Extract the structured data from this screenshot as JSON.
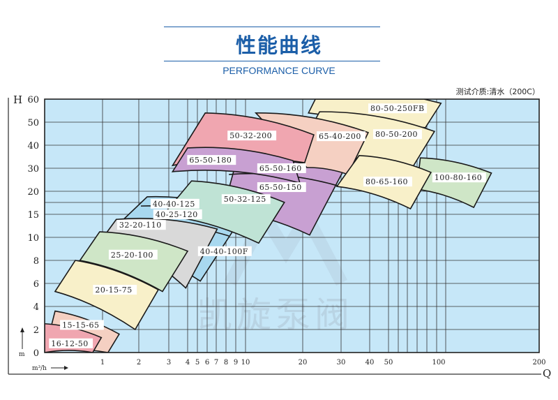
{
  "header": {
    "title": "性能曲线",
    "subtitle": "PERFORMANCE CURVE",
    "test_medium": "测试介质:清水（200C）"
  },
  "watermark": "凯旋泵阀",
  "colors": {
    "plot_bg": "#c6e7f8",
    "grid": "#333333",
    "title_blue": "#1b5ea8",
    "pink": "#f0a6b0",
    "peach": "#f5d0c2",
    "yellow": "#f8f0c9",
    "green": "#cfe6c7",
    "purple": "#c8a0d2",
    "teal": "#bfe3d5",
    "blue": "#a8d8ef",
    "grey": "#d9d9d9"
  },
  "chart_data": {
    "type": "area",
    "xlabel": "Q",
    "ylabel": "H",
    "x_unit": "m³/h",
    "y_unit": "m",
    "x_scale": "custom non-linear (log-like)",
    "y_scale": "custom non-linear",
    "xlim": [
      0,
      200
    ],
    "ylim": [
      0,
      60
    ],
    "grid": true,
    "x_ticks": [
      1,
      2,
      3,
      4,
      5,
      6,
      7,
      8,
      9,
      10,
      20,
      30,
      40,
      50,
      100,
      200
    ],
    "x_gridlines": [
      1,
      2,
      3,
      4,
      5,
      6,
      7,
      8,
      9,
      10,
      20,
      30,
      40,
      50,
      60,
      70,
      80,
      90,
      100,
      110
    ],
    "y_ticks": [
      0,
      2,
      4,
      6,
      8,
      10,
      15,
      20,
      30,
      40,
      50,
      60
    ],
    "y_gridlines": [
      2,
      4,
      6,
      8,
      10,
      15,
      17.5,
      20,
      30,
      40,
      50
    ],
    "pumps": [
      {
        "name": "15-15-65",
        "color": "peach",
        "corners": [
          [
            0.18,
            3.6
          ],
          [
            1.46,
            1.6
          ],
          [
            1.15,
            0
          ],
          [
            0,
            0
          ]
        ],
        "label_at": [
          0.29,
          2.4
        ]
      },
      {
        "name": "16-12-50",
        "color": "pink",
        "corners": [
          [
            0,
            2.5
          ],
          [
            0.98,
            1.3
          ],
          [
            0.83,
            0
          ],
          [
            0,
            0
          ]
        ],
        "label_at": [
          0.1,
          0.8
        ]
      },
      {
        "name": "20-15-75",
        "color": "yellow",
        "corners": [
          [
            0.53,
            8.0
          ],
          [
            2.65,
            5.45
          ],
          [
            1.9,
            2.0
          ],
          [
            0.18,
            5.3
          ]
        ],
        "label_at": [
          0.86,
          5.45
        ]
      },
      {
        "name": "40-40-125",
        "color": "blue",
        "corners": [
          [
            2.28,
            18.8
          ],
          [
            10,
            15.6
          ],
          [
            5.3,
            6.2
          ],
          [
            1.06,
            10
          ]
        ],
        "label_at": [
          2.44,
          17.3
        ],
        "inner_curves": [
          {
            "name": "40-25-120",
            "from": [
              2.07,
              16.8
            ],
            "to": [
              9.36,
              13.5
            ],
            "label_at": [
              2.53,
              15
            ]
          },
          {
            "name": "40-40-100F",
            "from": [
              2.72,
              12.3
            ],
            "to": [
              8.3,
              10.3
            ],
            "label_at": [
              5.2,
              8.8
            ]
          }
        ]
      },
      {
        "name": "32-20-110",
        "color": "grey",
        "corners": [
          [
            1.38,
            13.9
          ],
          [
            7.1,
            11.8
          ],
          [
            3.9,
            5.6
          ],
          [
            1.12,
            11.1
          ]
        ],
        "label_at": [
          1.44,
          12.7
        ]
      },
      {
        "name": "25-20-100",
        "color": "green",
        "corners": [
          [
            0.95,
            11.2
          ],
          [
            4.0,
            8.8
          ],
          [
            2.79,
            5.3
          ],
          [
            0.61,
            8.0
          ]
        ],
        "label_at": [
          1.21,
          8.5
        ]
      },
      {
        "name": "65-50-160",
        "color": "purple",
        "corners": [
          [
            9.1,
            33.6
          ],
          [
            30.5,
            28.2
          ],
          [
            21.8,
            10.5
          ],
          [
            7.7,
            15.9
          ]
        ],
        "label_at": [
          12.3,
          30
        ],
        "inner_curves": [
          {
            "name": "65-50-150",
            "from": [
              8.3,
              27.3
            ],
            "to": [
              29.8,
              22.1
            ],
            "label_at": [
              12.3,
              21.8
            ]
          }
        ]
      },
      {
        "name": "50-32-125",
        "color": "teal",
        "corners": [
          [
            4.4,
            24.5
          ],
          [
            16.8,
            17.6
          ],
          [
            12.3,
            9.5
          ],
          [
            2.8,
            14.8
          ]
        ],
        "label_at": [
          7.7,
          18.3
        ]
      },
      {
        "name": "80-50-250FB",
        "color": "yellow",
        "corners": [
          [
            23.3,
            60
          ],
          [
            87,
            60
          ],
          [
            104.8,
            58.2
          ],
          [
            88.4,
            47.6
          ],
          [
            21.5,
            54
          ]
        ],
        "label_at": [
          40,
          56
        ]
      },
      {
        "name": "80-50-200",
        "color": "yellow",
        "corners": [
          [
            24.4,
            54.5
          ],
          [
            97.8,
            46
          ],
          [
            76,
            30.9
          ],
          [
            18.3,
            33.3
          ]
        ],
        "label_at": [
          42.6,
          44.8
        ]
      },
      {
        "name": "65-40-200",
        "color": "peach",
        "corners": [
          [
            11.8,
            54
          ],
          [
            39.5,
            45.5
          ],
          [
            32.4,
            27.3
          ],
          [
            21.1,
            30.3
          ]
        ],
        "label_at": [
          24,
          43.9
        ]
      },
      {
        "name": "50-32-200",
        "color": "pink",
        "corners": [
          [
            5.8,
            54
          ],
          [
            22.9,
            44.5
          ],
          [
            20.5,
            32.4
          ],
          [
            3.2,
            31.2
          ]
        ],
        "label_at": [
          8.3,
          44.2
        ]
      },
      {
        "name": "65-50-180",
        "color": "purple",
        "corners": [
          [
            4,
            38.8
          ],
          [
            18.3,
            33.3
          ],
          [
            19.5,
            23.6
          ],
          [
            3.2,
            28.5
          ]
        ],
        "label_at": [
          4.1,
          33.6
        ]
      },
      {
        "name": "100-80-160",
        "color": "green",
        "corners": [
          [
            83.3,
            34.5
          ],
          [
            154,
            27.9
          ],
          [
            137,
            16.5
          ],
          [
            79.7,
            20.9
          ]
        ],
        "label_at": [
          97,
          26
        ]
      },
      {
        "name": "80-65-160",
        "color": "yellow",
        "corners": [
          [
            36.3,
            35.5
          ],
          [
            94.2,
            28.2
          ],
          [
            73.2,
            16.2
          ],
          [
            28.9,
            22.1
          ]
        ],
        "label_at": [
          38.3,
          24.2
        ]
      }
    ]
  }
}
